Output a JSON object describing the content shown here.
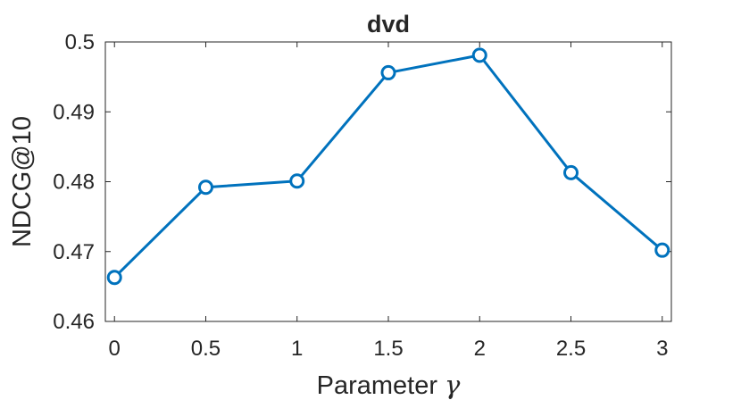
{
  "chart_data": {
    "type": "line",
    "title": "dvd",
    "xlabel": "Parameter",
    "xlabel_symbol": "γ",
    "ylabel": "NDCG@10",
    "x": [
      0,
      0.5,
      1,
      1.5,
      2,
      2.5,
      3
    ],
    "series": [
      {
        "values": [
          0.4663,
          0.4792,
          0.4801,
          0.4956,
          0.4981,
          0.4813,
          0.4702
        ],
        "color": "#0072BD",
        "marker": "circle"
      }
    ],
    "xlim": [
      -0.05,
      3.05
    ],
    "ylim": [
      0.46,
      0.5
    ],
    "xticks": [
      "0",
      "0.5",
      "1",
      "1.5",
      "2",
      "2.5",
      "3"
    ],
    "yticks": [
      "0.46",
      "0.47",
      "0.48",
      "0.49",
      "0.5"
    ],
    "grid": false,
    "legend": "none"
  }
}
